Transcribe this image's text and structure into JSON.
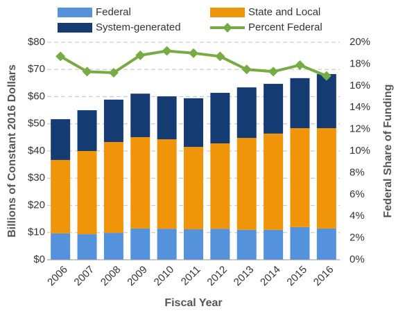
{
  "chart_data": {
    "type": "bar",
    "stacked": true,
    "xlabel": "Fiscal Year",
    "ylabel": "Billions of Constant 2016 Dollars",
    "y2label": "Federal Share of Funding",
    "categories": [
      "2006",
      "2007",
      "2008",
      "2009",
      "2010",
      "2011",
      "2012",
      "2013",
      "2014",
      "2015",
      "2016"
    ],
    "series": [
      {
        "name": "Federal",
        "color": "#5592dc",
        "values": [
          9.7,
          9.4,
          9.9,
          11.5,
          11.4,
          11.2,
          11.4,
          11.0,
          11.0,
          12.0,
          11.5
        ]
      },
      {
        "name": "State and Local",
        "color": "#f0940a",
        "values": [
          27.0,
          30.6,
          33.4,
          33.6,
          32.9,
          30.3,
          31.4,
          33.8,
          35.4,
          36.4,
          36.9
        ]
      },
      {
        "name": "System-generated",
        "color": "#143c73",
        "values": [
          15.0,
          15.0,
          15.6,
          16.0,
          15.8,
          17.9,
          18.6,
          18.6,
          18.3,
          18.4,
          19.9
        ]
      },
      {
        "name": "Percent Federal",
        "color": "#77ab43",
        "type": "line",
        "axis": "y2",
        "values": [
          18.7,
          17.3,
          17.2,
          18.8,
          19.2,
          19.0,
          18.7,
          17.5,
          17.3,
          17.9,
          16.9
        ]
      }
    ],
    "ylim": [
      0,
      80
    ],
    "yticks": [
      {
        "value": 0,
        "label": "$0"
      },
      {
        "value": 10,
        "label": "$10"
      },
      {
        "value": 20,
        "label": "$20"
      },
      {
        "value": 30,
        "label": "$30"
      },
      {
        "value": 40,
        "label": "$40"
      },
      {
        "value": 50,
        "label": "$50"
      },
      {
        "value": 60,
        "label": "$60"
      },
      {
        "value": 70,
        "label": "$70"
      },
      {
        "value": 80,
        "label": "$80"
      }
    ],
    "y2lim": [
      0,
      20
    ],
    "y2ticks": [
      {
        "value": 0,
        "label": "0%"
      },
      {
        "value": 2,
        "label": "2%"
      },
      {
        "value": 4,
        "label": "4%"
      },
      {
        "value": 6,
        "label": "6%"
      },
      {
        "value": 8,
        "label": "8%"
      },
      {
        "value": 10,
        "label": "10%"
      },
      {
        "value": 12,
        "label": "12%"
      },
      {
        "value": 14,
        "label": "14%"
      },
      {
        "value": 16,
        "label": "16%"
      },
      {
        "value": 18,
        "label": "18%"
      },
      {
        "value": 20,
        "label": "20%"
      }
    ],
    "grid": true,
    "legend": "top"
  }
}
